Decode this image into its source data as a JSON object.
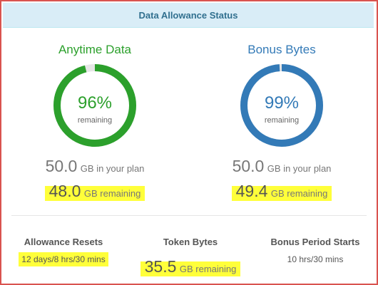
{
  "header": {
    "title": "Data Allowance Status"
  },
  "anytime": {
    "title": "Anytime Data",
    "percent_text": "96%",
    "remaining_label": "remaining",
    "fraction_remaining": 0.96,
    "plan_value": "50.0",
    "plan_unit": "GB in your plan",
    "remaining_value": "48.0",
    "remaining_unit": "GB remaining",
    "color": "#2ca02c"
  },
  "bonus": {
    "title": "Bonus Bytes",
    "percent_text": "99%",
    "remaining_label": "remaining",
    "fraction_remaining": 0.99,
    "plan_value": "50.0",
    "plan_unit": "GB in your plan",
    "remaining_value": "49.4",
    "remaining_unit": "GB remaining",
    "color": "#337ab7"
  },
  "footer": {
    "resets": {
      "title": "Allowance Resets",
      "value": "12 days/8 hrs/30 mins"
    },
    "token": {
      "title": "Token Bytes",
      "value": "35.5",
      "unit": "GB remaining"
    },
    "bonus_period": {
      "title": "Bonus Period Starts",
      "value": "10 hrs/30 mins"
    }
  },
  "colors": {
    "track": "#e6e6e6",
    "highlight": "#ffff3a"
  }
}
